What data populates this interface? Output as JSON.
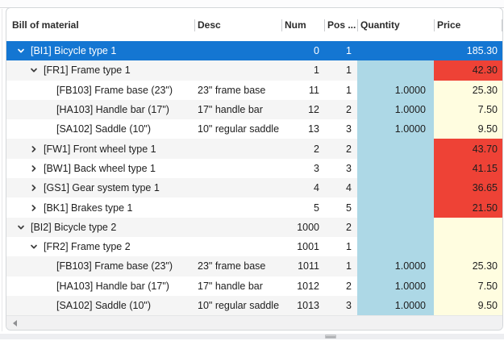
{
  "colors": {
    "selected_row": "#1476d2",
    "quantity_column": "#add8e6",
    "price_leaf": "#fffde0",
    "price_alert": "#ee4236"
  },
  "table": {
    "columns": [
      {
        "label": "Bill of material"
      },
      {
        "label": "Desc"
      },
      {
        "label": "Num"
      },
      {
        "label": "Pos ..."
      },
      {
        "label": "Quantity"
      },
      {
        "label": "Price"
      }
    ],
    "rows": [
      {
        "label": "[BI1] Bicycle type 1",
        "desc": "",
        "num": "0",
        "pos": "1",
        "qty": "",
        "price": "185.30",
        "level": 0,
        "chevron": "expanded",
        "selected": true,
        "price_bg": "none"
      },
      {
        "label": "[FR1] Frame type 1",
        "desc": "",
        "num": "1",
        "pos": "1",
        "qty": "",
        "price": "42.30",
        "level": 1,
        "chevron": "expanded",
        "selected": false,
        "price_bg": "red"
      },
      {
        "label": "[FB103] Frame base (23\")",
        "desc": "23\" frame base",
        "num": "11",
        "pos": "1",
        "qty": "1.0000",
        "price": "25.30",
        "level": 2,
        "chevron": "none",
        "selected": false,
        "price_bg": "yellow"
      },
      {
        "label": "[HA103] Handle bar (17\")",
        "desc": "17\" handle bar",
        "num": "12",
        "pos": "2",
        "qty": "1.0000",
        "price": "7.50",
        "level": 2,
        "chevron": "none",
        "selected": false,
        "price_bg": "yellow"
      },
      {
        "label": "[SA102] Saddle (10\")",
        "desc": "10\" regular saddle",
        "num": "13",
        "pos": "3",
        "qty": "1.0000",
        "price": "9.50",
        "level": 2,
        "chevron": "none",
        "selected": false,
        "price_bg": "yellow"
      },
      {
        "label": "[FW1] Front wheel type 1",
        "desc": "",
        "num": "2",
        "pos": "2",
        "qty": "",
        "price": "43.70",
        "level": 1,
        "chevron": "collapsed",
        "selected": false,
        "price_bg": "red"
      },
      {
        "label": "[BW1] Back wheel type 1",
        "desc": "",
        "num": "3",
        "pos": "3",
        "qty": "",
        "price": "41.15",
        "level": 1,
        "chevron": "collapsed",
        "selected": false,
        "price_bg": "red"
      },
      {
        "label": "[GS1] Gear system type 1",
        "desc": "",
        "num": "4",
        "pos": "4",
        "qty": "",
        "price": "36.65",
        "level": 1,
        "chevron": "collapsed",
        "selected": false,
        "price_bg": "red"
      },
      {
        "label": "[BK1] Brakes type 1",
        "desc": "",
        "num": "5",
        "pos": "5",
        "qty": "",
        "price": "21.50",
        "level": 1,
        "chevron": "collapsed",
        "selected": false,
        "price_bg": "red"
      },
      {
        "label": "[BI2] Bicycle type 2",
        "desc": "",
        "num": "1000",
        "pos": "2",
        "qty": "",
        "price": "",
        "level": 0,
        "chevron": "expanded",
        "selected": false,
        "price_bg": "yellow"
      },
      {
        "label": "[FR2] Frame type 2",
        "desc": "",
        "num": "1001",
        "pos": "1",
        "qty": "",
        "price": "",
        "level": 1,
        "chevron": "expanded",
        "selected": false,
        "price_bg": "yellow"
      },
      {
        "label": "[FB103] Frame base (23\")",
        "desc": "23\" frame base",
        "num": "1011",
        "pos": "1",
        "qty": "1.0000",
        "price": "25.30",
        "level": 2,
        "chevron": "none",
        "selected": false,
        "price_bg": "yellow"
      },
      {
        "label": "[HA103] Handle bar (17\")",
        "desc": "17\" handle bar",
        "num": "1012",
        "pos": "2",
        "qty": "1.0000",
        "price": "7.50",
        "level": 2,
        "chevron": "none",
        "selected": false,
        "price_bg": "yellow"
      },
      {
        "label": "[SA102] Saddle (10\")",
        "desc": "10\" regular saddle",
        "num": "1013",
        "pos": "3",
        "qty": "1.0000",
        "price": "9.50",
        "level": 2,
        "chevron": "none",
        "selected": false,
        "price_bg": "yellow"
      }
    ]
  }
}
